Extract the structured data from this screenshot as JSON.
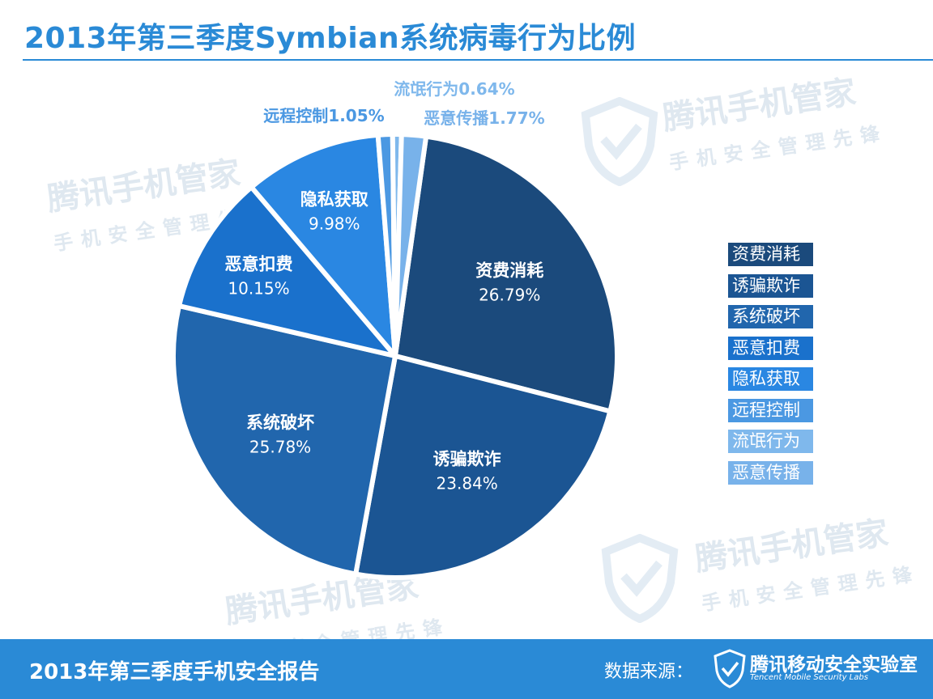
{
  "page": {
    "title": "2013年第三季度Symbian系统病毒行为比例",
    "footer_left": "2013年第三季度手机安全报告",
    "footer_source_label": "数据来源：",
    "footer_logo_text": "腾讯移动安全实验室",
    "footer_logo_sub": "Tencent Mobile Security Labs",
    "watermark_main": "腾讯手机管家",
    "watermark_sub": "手机安全管理先锋"
  },
  "chart_data": {
    "type": "pie",
    "title": "2013年第三季度Symbian系统病毒行为比例",
    "start_angle_deg": 8,
    "direction": "clockwise",
    "legend_position": "right",
    "slices": [
      {
        "label": "资费消耗",
        "value": 26.79,
        "value_label": "26.79%",
        "color": "#1b4a7c"
      },
      {
        "label": "诱骗欺诈",
        "value": 23.84,
        "value_label": "23.84%",
        "color": "#1b5593"
      },
      {
        "label": "系统破坏",
        "value": 25.78,
        "value_label": "25.78%",
        "color": "#2166ad"
      },
      {
        "label": "恶意扣费",
        "value": 10.15,
        "value_label": "10.15%",
        "color": "#1a71cc"
      },
      {
        "label": "隐私获取",
        "value": 9.98,
        "value_label": "9.98%",
        "color": "#2a87e2"
      },
      {
        "label": "远程控制",
        "value": 1.05,
        "value_label": "1.05%",
        "color": "#4b98e2"
      },
      {
        "label": "流氓行为",
        "value": 0.64,
        "value_label": "0.64%",
        "color": "#7fb8ec"
      },
      {
        "label": "恶意传播",
        "value": 1.77,
        "value_label": "1.77%",
        "color": "#78b2ea"
      }
    ]
  }
}
